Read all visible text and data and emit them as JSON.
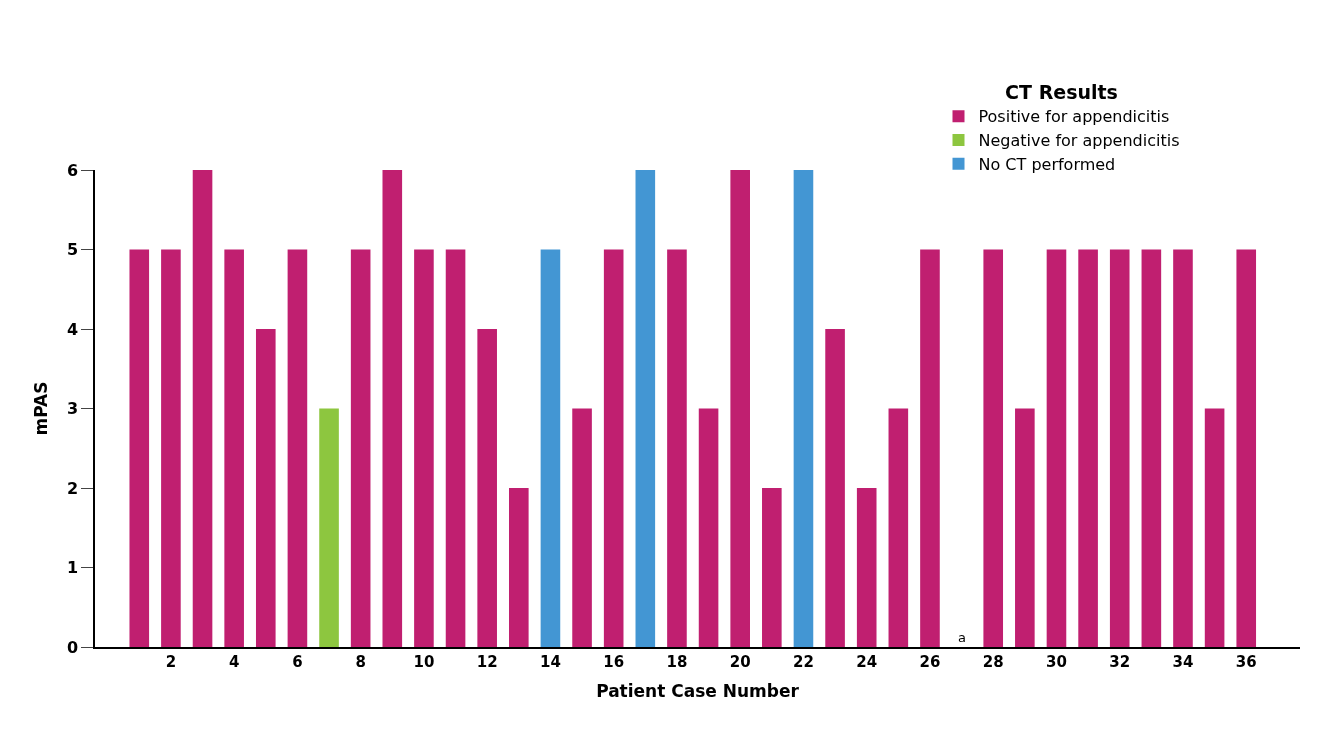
{
  "chart_data": {
    "type": "bar",
    "xlabel": "Patient Case Number",
    "ylabel": "mPAS",
    "legend_title": "CT Results",
    "x": [
      1,
      2,
      3,
      4,
      5,
      6,
      7,
      8,
      9,
      10,
      11,
      12,
      13,
      14,
      15,
      16,
      17,
      18,
      19,
      20,
      21,
      22,
      23,
      24,
      25,
      26,
      27,
      28,
      29,
      30,
      31,
      32,
      33,
      34,
      35,
      36
    ],
    "series": [
      {
        "name": "Positive for appendicitis",
        "color": "#c01f70",
        "values": [
          5,
          5,
          6,
          5,
          4,
          5,
          null,
          5,
          6,
          5,
          5,
          4,
          2,
          null,
          3,
          5,
          null,
          5,
          3,
          6,
          2,
          null,
          4,
          2,
          3,
          5,
          null,
          5,
          3,
          5,
          5,
          5,
          5,
          5,
          3,
          5
        ]
      },
      {
        "name": "Negative for appendicitis",
        "color": "#8dc63f",
        "values": [
          null,
          null,
          null,
          null,
          null,
          null,
          3,
          null,
          null,
          null,
          null,
          null,
          null,
          null,
          null,
          null,
          null,
          null,
          null,
          null,
          null,
          null,
          null,
          null,
          null,
          null,
          null,
          null,
          null,
          null,
          null,
          null,
          null,
          null,
          null,
          null
        ]
      },
      {
        "name": "No CT performed",
        "color": "#4396d3",
        "values": [
          null,
          null,
          null,
          null,
          null,
          null,
          null,
          null,
          null,
          null,
          null,
          null,
          null,
          5,
          null,
          null,
          6,
          null,
          null,
          null,
          null,
          6,
          null,
          null,
          null,
          null,
          null,
          null,
          null,
          null,
          null,
          null,
          null,
          null,
          null,
          null
        ]
      }
    ],
    "annotations": [
      "a"
    ],
    "xlim": [
      -0.4,
      37.7
    ],
    "xticks": [
      2,
      4,
      6,
      8,
      10,
      12,
      14,
      16,
      18,
      20,
      22,
      24,
      26,
      28,
      30,
      32,
      34,
      36
    ],
    "ylim": [
      0,
      6
    ],
    "yticks": [
      0,
      1,
      2,
      3,
      4,
      5,
      6
    ],
    "legend": "top right"
  }
}
